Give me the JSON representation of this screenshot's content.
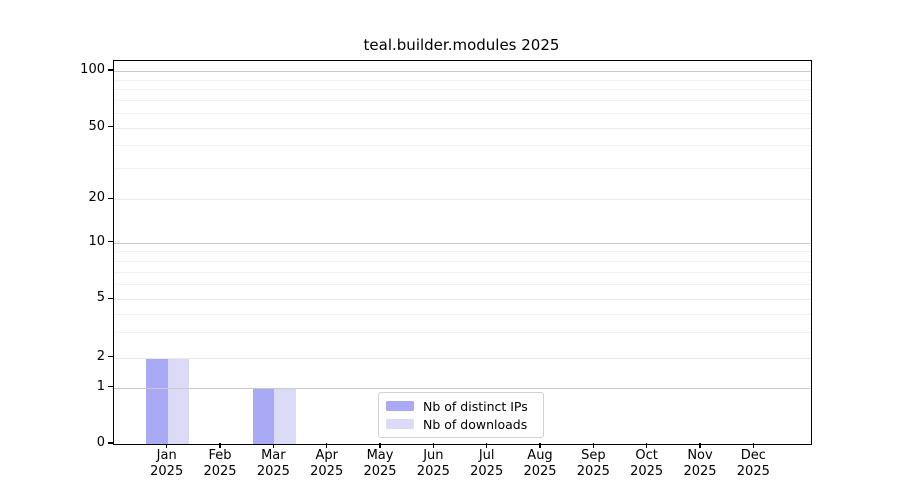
{
  "chart_data": {
    "type": "bar",
    "title": "teal.builder.modules 2025",
    "x_categories": [
      {
        "month": "Jan",
        "year": "2025"
      },
      {
        "month": "Feb",
        "year": "2025"
      },
      {
        "month": "Mar",
        "year": "2025"
      },
      {
        "month": "Apr",
        "year": "2025"
      },
      {
        "month": "May",
        "year": "2025"
      },
      {
        "month": "Jun",
        "year": "2025"
      },
      {
        "month": "Jul",
        "year": "2025"
      },
      {
        "month": "Aug",
        "year": "2025"
      },
      {
        "month": "Sep",
        "year": "2025"
      },
      {
        "month": "Oct",
        "year": "2025"
      },
      {
        "month": "Nov",
        "year": "2025"
      },
      {
        "month": "Dec",
        "year": "2025"
      }
    ],
    "series": [
      {
        "name": "Nb of distinct IPs",
        "color": "#a9a9f5",
        "values": [
          2,
          0,
          1,
          0,
          0,
          0,
          0,
          0,
          0,
          0,
          0,
          0
        ]
      },
      {
        "name": "Nb of downloads",
        "color": "#dbdbf8",
        "values": [
          2,
          0,
          1,
          0,
          0,
          0,
          0,
          0,
          0,
          0,
          0,
          0
        ]
      }
    ],
    "y_axis": {
      "scale": "symlog-like (linear 0-1, log above)",
      "ticks": [
        0,
        1,
        2,
        5,
        10,
        20,
        50,
        100
      ],
      "minor_ticks": [
        3,
        4,
        6,
        7,
        8,
        9,
        30,
        40,
        60,
        70,
        80,
        90
      ],
      "range": [
        0,
        113
      ]
    },
    "grid": "horizontal, drawn over bars",
    "legend_position": "lower center inside plot"
  },
  "colors": {
    "bar_distinct_ips": "#a9a9f5",
    "bar_downloads": "#dbdbf8",
    "grid_decade": "#c9c9c9",
    "grid_labeled": "#e9e9e9",
    "grid_minor": "#f0f0f0",
    "axis": "#000000",
    "background": "#ffffff",
    "text": "#000000"
  }
}
